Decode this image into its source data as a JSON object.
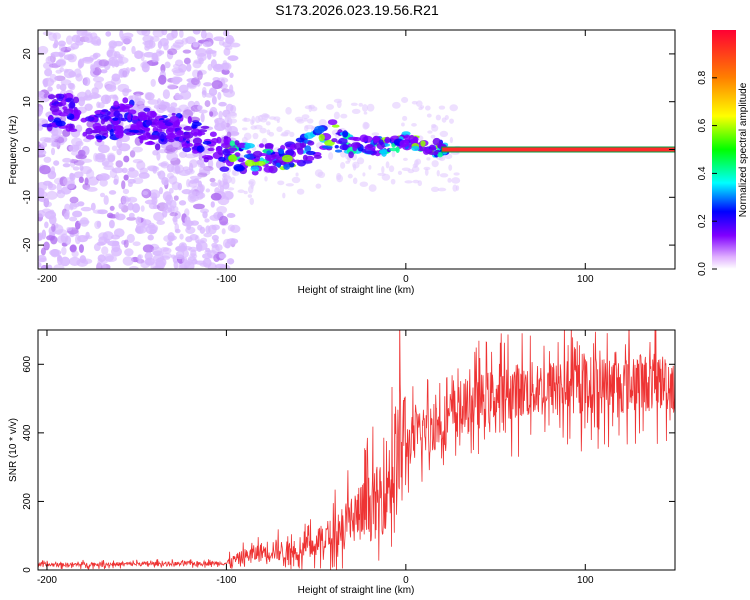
{
  "title": "S173.2026.023.19.56.R21",
  "chart_data": [
    {
      "type": "heatmap",
      "name": "spectrogram",
      "xlabel": "Height of straight line (km)",
      "ylabel": "Frequency (Hz)",
      "xlim": [
        -205,
        150
      ],
      "ylim": [
        -25,
        25
      ],
      "xticks": [
        "-200",
        "-100",
        "0",
        "100"
      ],
      "yticks": [
        "-20",
        "-10",
        "0",
        "10",
        "20"
      ],
      "colorbar": {
        "label": "Normalized spectral amplitude",
        "range": [
          0,
          1
        ],
        "ticks": [
          "0.0",
          "0.2",
          "0.4",
          "0.6",
          "0.8"
        ]
      },
      "carrier_line": {
        "frequency": 0,
        "from": 20,
        "to": 150
      },
      "signal_track": [
        {
          "x": -190,
          "y": 8
        },
        {
          "x": -170,
          "y": 5
        },
        {
          "x": -155,
          "y": 7
        },
        {
          "x": -140,
          "y": 4
        },
        {
          "x": -125,
          "y": 4
        },
        {
          "x": -100,
          "y": -1
        },
        {
          "x": -85,
          "y": -2
        },
        {
          "x": -70,
          "y": -1
        },
        {
          "x": -55,
          "y": 0
        },
        {
          "x": -40,
          "y": 3
        },
        {
          "x": -25,
          "y": 1
        },
        {
          "x": -10,
          "y": 0.5
        },
        {
          "x": 0,
          "y": 2
        },
        {
          "x": 10,
          "y": 0.5
        },
        {
          "x": 20,
          "y": 0
        }
      ]
    },
    {
      "type": "line",
      "name": "snr",
      "xlabel": "Height of straight line (km)",
      "ylabel": "SNR (10 * v/v)",
      "xlim": [
        -205,
        150
      ],
      "ylim": [
        0,
        700
      ],
      "xticks": [
        "-200",
        "-100",
        "0",
        "100"
      ],
      "yticks": [
        "0",
        "200",
        "400",
        "600"
      ],
      "color": "#ee3333",
      "envelope": [
        {
          "x": -205,
          "y": 15
        },
        {
          "x": -100,
          "y": 20
        },
        {
          "x": -90,
          "y": 40
        },
        {
          "x": -75,
          "y": 60
        },
        {
          "x": -60,
          "y": 50
        },
        {
          "x": -45,
          "y": 90
        },
        {
          "x": -30,
          "y": 150
        },
        {
          "x": -15,
          "y": 200
        },
        {
          "x": -5,
          "y": 330
        },
        {
          "x": 5,
          "y": 390
        },
        {
          "x": 15,
          "y": 420
        },
        {
          "x": 25,
          "y": 450
        },
        {
          "x": 40,
          "y": 490
        },
        {
          "x": 60,
          "y": 520
        },
        {
          "x": 80,
          "y": 530
        },
        {
          "x": 100,
          "y": 540
        },
        {
          "x": 120,
          "y": 540
        },
        {
          "x": 150,
          "y": 550
        }
      ]
    }
  ]
}
